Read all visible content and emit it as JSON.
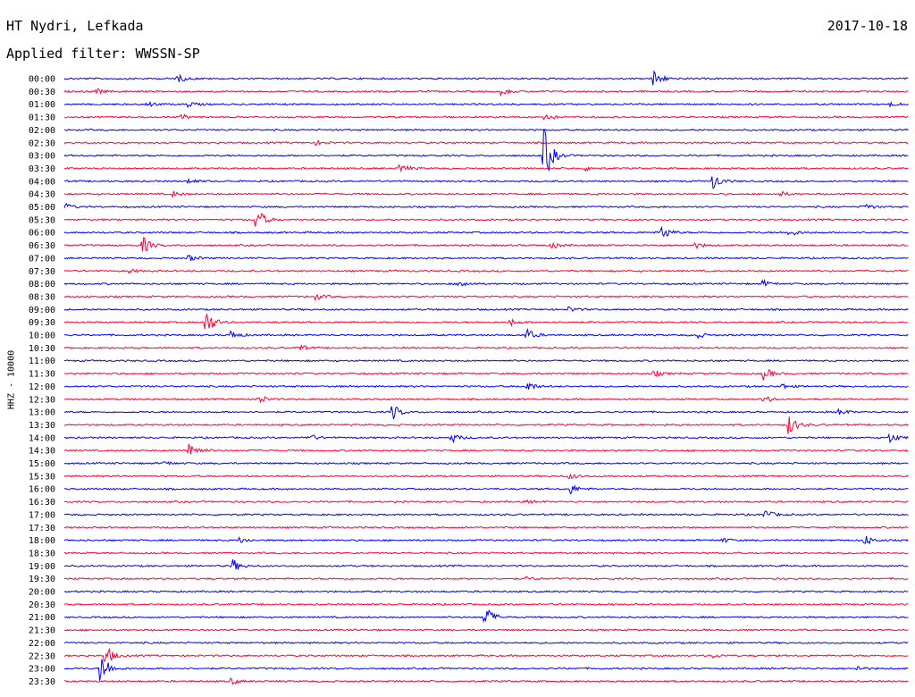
{
  "header": {
    "station": "HT Nydri, Lefkada",
    "filter": "Applied filter: WWSSN-SP",
    "date": "2017-10-18"
  },
  "chart_data": {
    "type": "line",
    "title": "HT Nydri, Lefkada",
    "subtitle": "Applied filter: WWSSN-SP",
    "date": "2017-10-18",
    "ylabel": "HHZ - 10000",
    "xlabel": "",
    "row_interval_minutes": 30,
    "colors": [
      "#0000ff",
      "#ff0033"
    ],
    "series": [
      {
        "time": "00:00",
        "events": [
          [
            0.135,
            0.5
          ],
          [
            0.7,
            1.1
          ]
        ]
      },
      {
        "time": "00:30",
        "events": [
          [
            0.04,
            0.3
          ],
          [
            0.52,
            0.4
          ]
        ]
      },
      {
        "time": "01:00",
        "events": [
          [
            0.1,
            0.35
          ],
          [
            0.15,
            0.3
          ],
          [
            0.98,
            0.25
          ]
        ]
      },
      {
        "time": "01:30",
        "events": [
          [
            0.14,
            0.3
          ],
          [
            0.57,
            0.5
          ]
        ]
      },
      {
        "time": "02:00",
        "events": []
      },
      {
        "time": "02:30",
        "events": [
          [
            0.3,
            0.25
          ]
        ]
      },
      {
        "time": "03:00",
        "events": [
          [
            0.57,
            3.5
          ]
        ]
      },
      {
        "time": "03:30",
        "events": [
          [
            0.4,
            0.6
          ],
          [
            0.62,
            0.3
          ]
        ]
      },
      {
        "time": "04:00",
        "events": [
          [
            0.15,
            0.3
          ],
          [
            0.77,
            1.0
          ]
        ]
      },
      {
        "time": "04:30",
        "events": [
          [
            0.13,
            0.35
          ],
          [
            0.85,
            0.3
          ]
        ]
      },
      {
        "time": "05:00",
        "events": [
          [
            0.0,
            0.5
          ],
          [
            0.95,
            0.4
          ]
        ]
      },
      {
        "time": "05:30",
        "events": [
          [
            0.23,
            1.4
          ]
        ]
      },
      {
        "time": "06:00",
        "events": [
          [
            0.71,
            0.9
          ],
          [
            0.86,
            0.5
          ]
        ]
      },
      {
        "time": "06:30",
        "events": [
          [
            0.095,
            1.0
          ],
          [
            0.58,
            0.4
          ],
          [
            0.75,
            0.3
          ]
        ]
      },
      {
        "time": "07:00",
        "events": [
          [
            0.15,
            0.35
          ]
        ]
      },
      {
        "time": "07:30",
        "events": [
          [
            0.08,
            0.2
          ]
        ]
      },
      {
        "time": "08:00",
        "events": [
          [
            0.47,
            0.5
          ],
          [
            0.83,
            0.35
          ]
        ]
      },
      {
        "time": "08:30",
        "events": [
          [
            0.3,
            0.35
          ]
        ]
      },
      {
        "time": "09:00",
        "events": [
          [
            0.6,
            0.3
          ]
        ]
      },
      {
        "time": "09:30",
        "events": [
          [
            0.17,
            1.6
          ],
          [
            0.53,
            0.4
          ]
        ]
      },
      {
        "time": "10:00",
        "events": [
          [
            0.2,
            0.5
          ],
          [
            0.55,
            0.7
          ],
          [
            0.75,
            0.4
          ]
        ]
      },
      {
        "time": "10:30",
        "events": [
          [
            0.28,
            0.4
          ]
        ]
      },
      {
        "time": "11:00",
        "events": []
      },
      {
        "time": "11:30",
        "events": [
          [
            0.7,
            0.4
          ],
          [
            0.83,
            0.8
          ]
        ]
      },
      {
        "time": "12:00",
        "events": [
          [
            0.55,
            0.6
          ],
          [
            0.85,
            0.35
          ]
        ]
      },
      {
        "time": "12:30",
        "events": [
          [
            0.23,
            0.7
          ],
          [
            0.83,
            0.4
          ]
        ]
      },
      {
        "time": "13:00",
        "events": [
          [
            0.39,
            1.0
          ],
          [
            0.92,
            0.4
          ]
        ]
      },
      {
        "time": "13:30",
        "events": [
          [
            0.86,
            1.3
          ]
        ]
      },
      {
        "time": "14:00",
        "events": [
          [
            0.29,
            0.5
          ],
          [
            0.46,
            0.6
          ],
          [
            0.98,
            0.6
          ]
        ]
      },
      {
        "time": "14:30",
        "events": [
          [
            0.15,
            1.2
          ]
        ]
      },
      {
        "time": "15:00",
        "events": [
          [
            0.12,
            0.25
          ]
        ]
      },
      {
        "time": "15:30",
        "events": [
          [
            0.6,
            0.35
          ]
        ]
      },
      {
        "time": "16:00",
        "events": [
          [
            0.6,
            0.7
          ]
        ]
      },
      {
        "time": "16:30",
        "events": [
          [
            0.55,
            0.15
          ]
        ]
      },
      {
        "time": "17:00",
        "events": [
          [
            0.83,
            0.7
          ]
        ]
      },
      {
        "time": "17:30",
        "events": []
      },
      {
        "time": "18:00",
        "events": [
          [
            0.21,
            0.35
          ],
          [
            0.78,
            0.3
          ],
          [
            0.95,
            0.6
          ]
        ]
      },
      {
        "time": "18:30",
        "events": []
      },
      {
        "time": "19:00",
        "events": [
          [
            0.2,
            0.9
          ]
        ]
      },
      {
        "time": "19:30",
        "events": [
          [
            0.55,
            0.2
          ]
        ]
      },
      {
        "time": "20:00",
        "events": []
      },
      {
        "time": "20:30",
        "events": []
      },
      {
        "time": "21:00",
        "events": [
          [
            0.5,
            1.4
          ]
        ]
      },
      {
        "time": "21:30",
        "events": []
      },
      {
        "time": "22:00",
        "events": []
      },
      {
        "time": "22:30",
        "events": [
          [
            0.05,
            1.3
          ],
          [
            0.77,
            0.3
          ]
        ]
      },
      {
        "time": "23:00",
        "events": [
          [
            0.045,
            2.2
          ],
          [
            0.94,
            0.35
          ]
        ]
      },
      {
        "time": "23:30",
        "events": [
          [
            0.2,
            0.35
          ]
        ]
      }
    ]
  }
}
